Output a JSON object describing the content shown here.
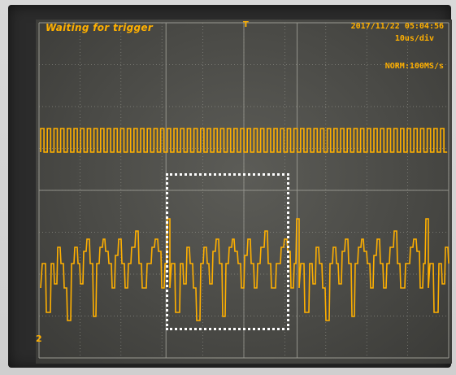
{
  "header": {
    "status": "Waiting for trigger",
    "trigger_marker": "T",
    "datetime": "2017/11/22 05:04:56",
    "timebase": "10us/div",
    "acquisition": "NORM:100MS/s"
  },
  "channel": {
    "marker": "2"
  },
  "colors": {
    "trace": "#ffb000",
    "grid": "#9a9a92",
    "screen": "#4a4a46",
    "highlight": "#ffffff"
  }
}
